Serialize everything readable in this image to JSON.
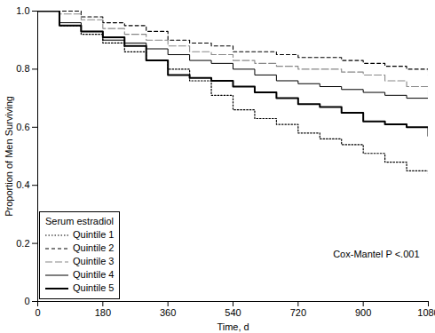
{
  "chart_data": {
    "type": "line",
    "x_label": "Time, d",
    "y_label": "Proportion of Men Surviving",
    "legend_title": "Serum estradiol",
    "legend": "lower left",
    "annotations": [
      {
        "text": "Cox-Mantel P <.001"
      }
    ],
    "grid": false,
    "xlim": [
      0,
      1080
    ],
    "xticks": [
      0,
      180,
      360,
      540,
      720,
      900,
      1080
    ],
    "ylim": [
      0,
      1
    ],
    "yticks": [
      0,
      0.2,
      0.4,
      0.6,
      0.8,
      {
        "value": 1,
        "label": "1.0"
      }
    ],
    "x": [
      0,
      60,
      120,
      180,
      240,
      300,
      360,
      420,
      480,
      540,
      600,
      660,
      720,
      780,
      840,
      900,
      960,
      1020,
      1080
    ],
    "series": [
      {
        "name": "Quintile 1",
        "color": "#000000",
        "line_style": "dotted",
        "values": [
          1.0,
          0.95,
          0.92,
          0.89,
          0.86,
          0.83,
          0.8,
          0.76,
          0.71,
          0.66,
          0.63,
          0.61,
          0.58,
          0.56,
          0.54,
          0.51,
          0.48,
          0.45,
          0.44
        ]
      },
      {
        "name": "Quintile 2",
        "color": "#000000",
        "line_style": "dashed",
        "values": [
          1.0,
          1.0,
          0.98,
          0.96,
          0.95,
          0.93,
          0.9,
          0.89,
          0.88,
          0.86,
          0.86,
          0.85,
          0.84,
          0.84,
          0.83,
          0.82,
          0.81,
          0.8,
          0.78
        ]
      },
      {
        "name": "Quintile 3",
        "color": "#888888",
        "line_style": "longdash",
        "values": [
          1.0,
          0.99,
          0.97,
          0.94,
          0.92,
          0.9,
          0.88,
          0.86,
          0.85,
          0.83,
          0.82,
          0.81,
          0.8,
          0.8,
          0.79,
          0.78,
          0.76,
          0.74,
          0.7
        ]
      },
      {
        "name": "Quintile 4",
        "color": "#000000",
        "line_style": "solid",
        "values": [
          1.0,
          0.96,
          0.93,
          0.9,
          0.89,
          0.87,
          0.85,
          0.83,
          0.82,
          0.8,
          0.78,
          0.76,
          0.75,
          0.74,
          0.73,
          0.72,
          0.71,
          0.7,
          0.67
        ]
      },
      {
        "name": "Quintile 5",
        "color": "#000000",
        "line_style": "thick",
        "values": [
          1.0,
          0.95,
          0.93,
          0.91,
          0.88,
          0.83,
          0.78,
          0.77,
          0.76,
          0.74,
          0.72,
          0.7,
          0.68,
          0.67,
          0.65,
          0.62,
          0.61,
          0.6,
          0.57
        ]
      }
    ]
  }
}
